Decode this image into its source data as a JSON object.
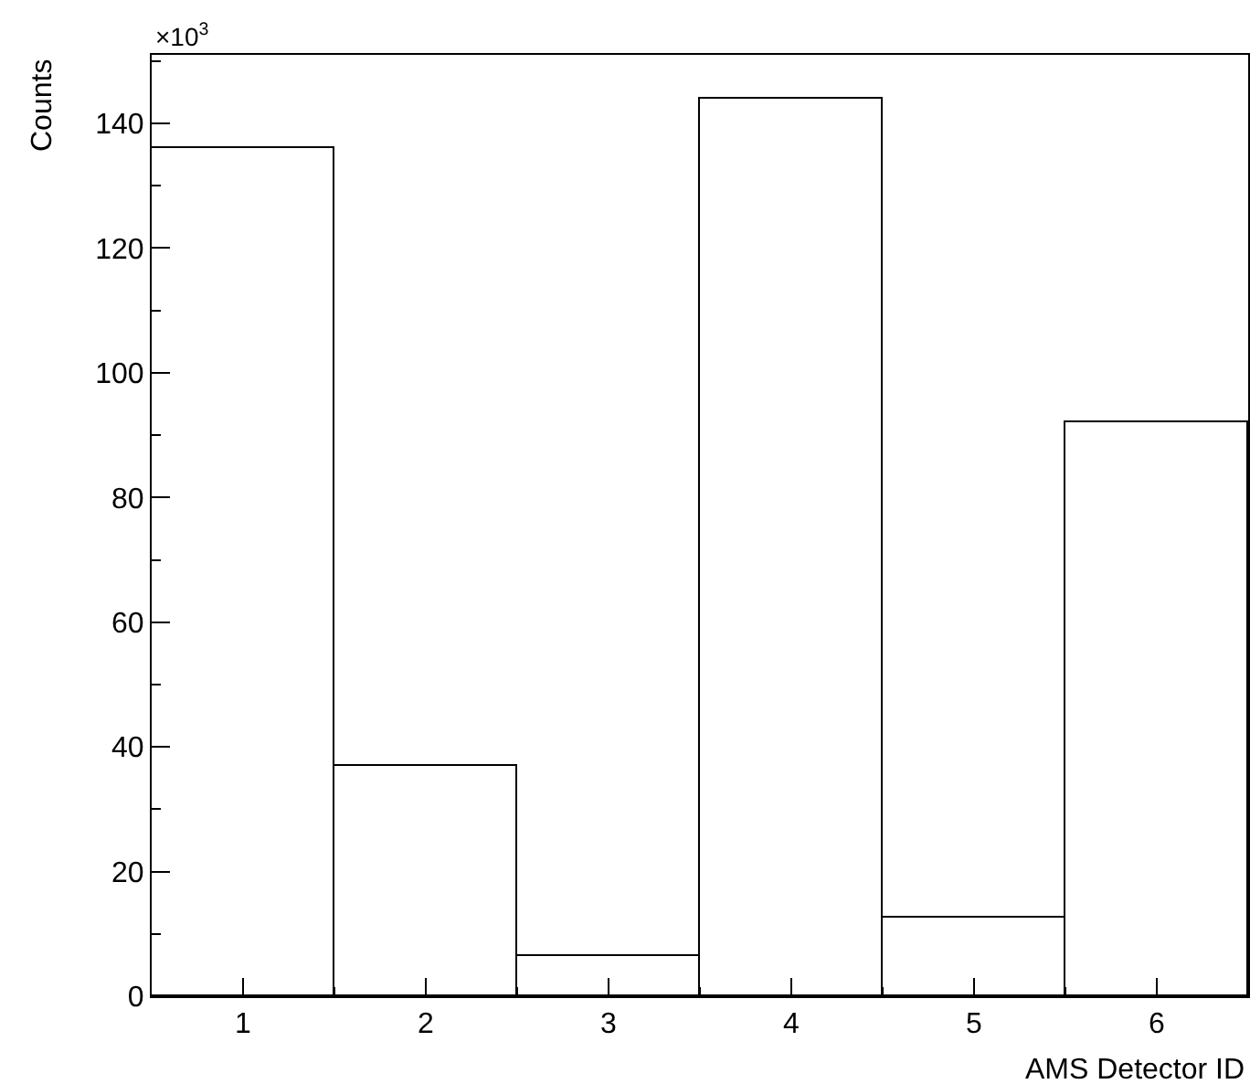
{
  "chart_data": {
    "type": "histogram",
    "xlabel": "AMS Detector ID",
    "ylabel": "Counts",
    "bins": [
      0.5,
      1.5,
      2.5,
      3.5,
      4.5,
      5.5,
      6.5
    ],
    "values": [
      136,
      37,
      6.5,
      144,
      12.6,
      92.2
    ],
    "color": "#000000",
    "xlim": [
      0.5,
      6.5
    ],
    "xticks": [
      1,
      2,
      3,
      4,
      5,
      6
    ],
    "ylim": [
      0,
      151
    ],
    "yticks": [
      0,
      20,
      40,
      60,
      80,
      100,
      120,
      140
    ],
    "annotations": [
      "×10$^{3}$"
    ]
  }
}
